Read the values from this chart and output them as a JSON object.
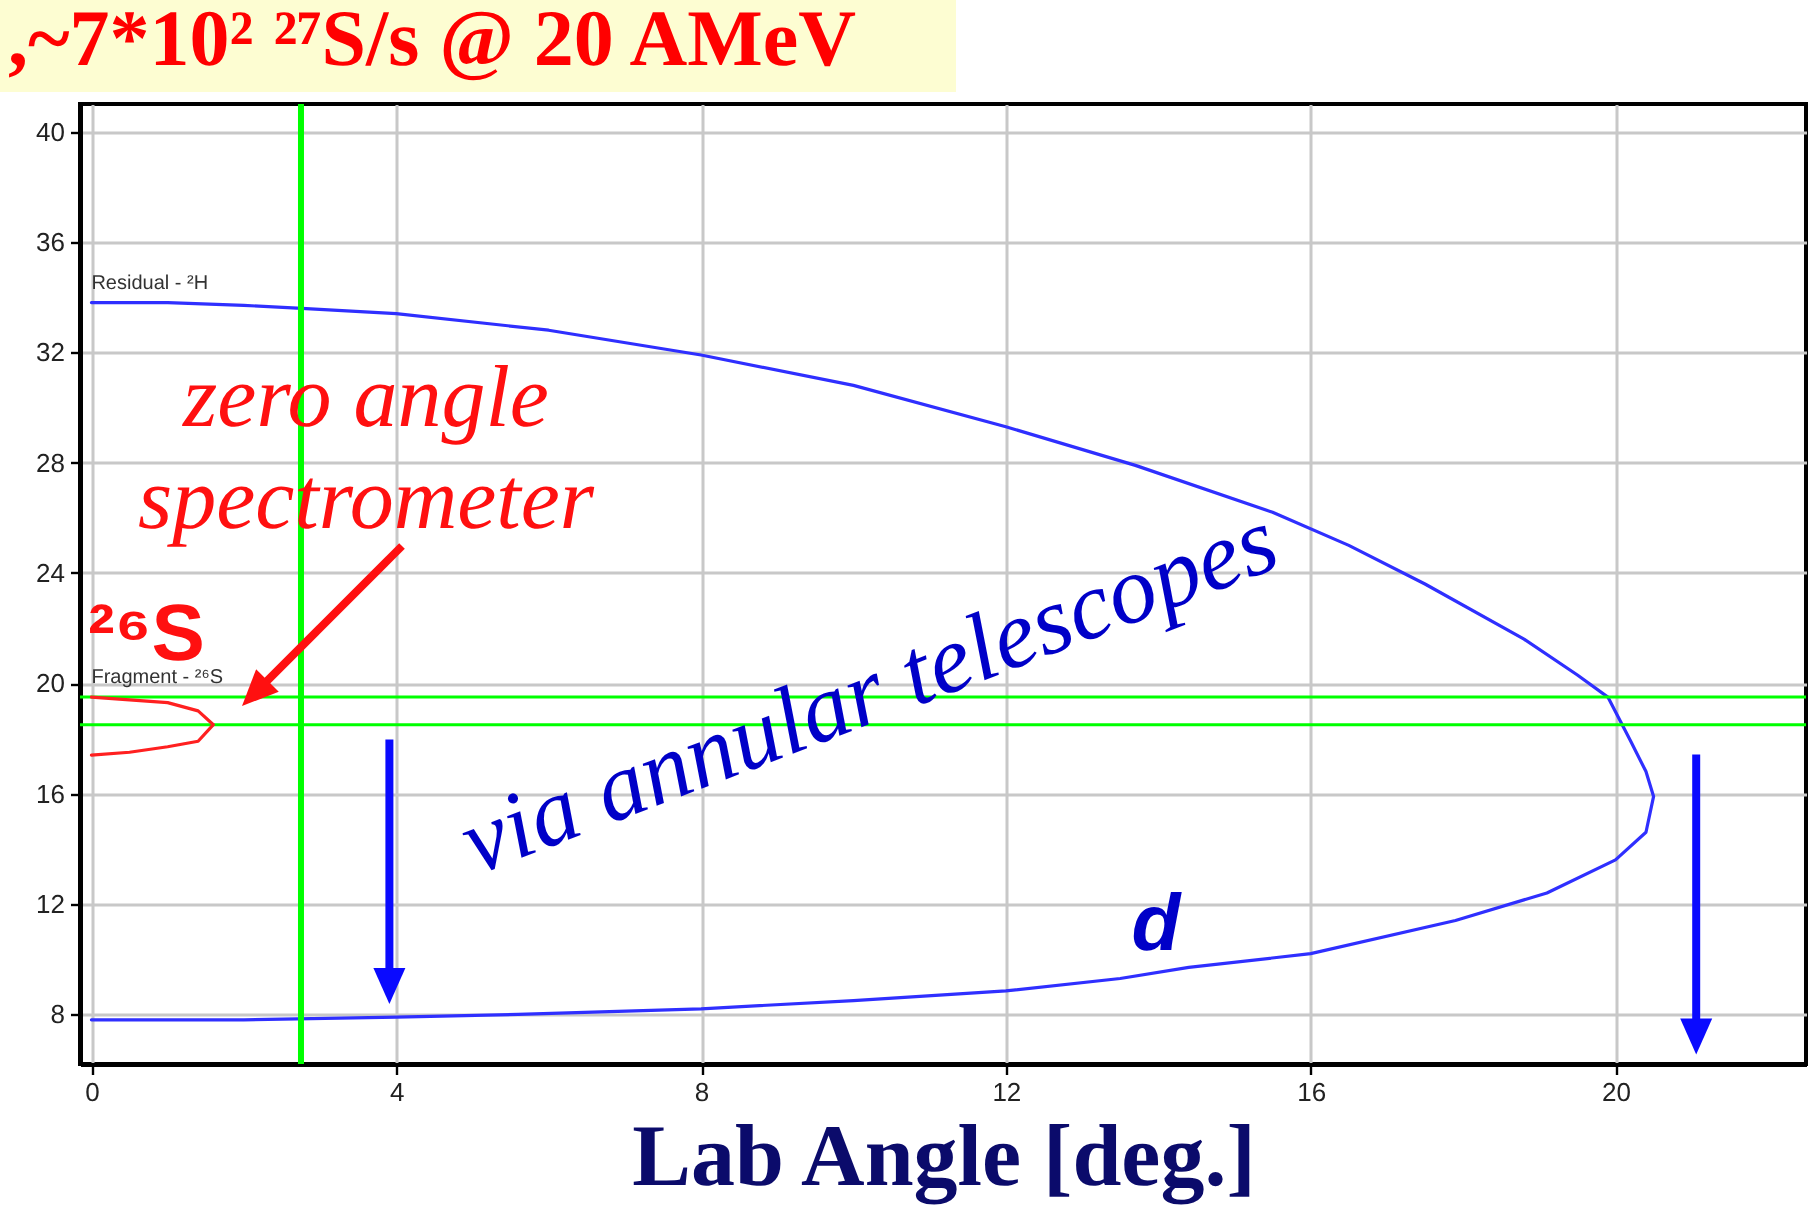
{
  "chart_data": {
    "type": "line",
    "title": ",~7*10² ²⁷S/s @ 20 AMeV",
    "xlabel": "Lab Angle [deg.]",
    "xlim": [
      -0.15,
      22.5
    ],
    "ylim": [
      6.2,
      41
    ],
    "xticks": [
      0,
      4,
      8,
      12,
      16,
      20
    ],
    "yticks": [
      8,
      12,
      16,
      20,
      24,
      28,
      32,
      36,
      40
    ],
    "grid": true,
    "series": [
      {
        "name": "Residual - ²H",
        "color": "#2f2fff",
        "x": [
          0,
          1,
          2,
          2.7,
          4,
          6,
          8,
          10,
          12,
          13.7,
          15.5,
          16.5,
          17.5,
          18.8,
          19.5,
          19.9,
          20.2,
          20.4,
          20.5,
          20.4,
          20,
          19.1,
          17.9,
          16,
          14.4,
          13.5,
          12,
          10,
          8,
          5.6,
          4,
          2,
          0
        ],
        "values": [
          33.8,
          33.8,
          33.7,
          33.6,
          33.4,
          32.8,
          31.9,
          30.8,
          29.3,
          27.9,
          26.2,
          25,
          23.6,
          21.6,
          20.3,
          19.5,
          17.9,
          16.8,
          15.9,
          14.6,
          13.6,
          12.4,
          11.4,
          10.2,
          9.7,
          9.3,
          8.85,
          8.5,
          8.2,
          8,
          7.9,
          7.8,
          7.8
        ]
      },
      {
        "name": "Fragment - ²⁶S",
        "color": "#ff2020",
        "x": [
          0,
          0.5,
          1,
          1.4,
          1.6,
          1.4,
          1,
          0.5,
          0
        ],
        "values": [
          19.5,
          19.4,
          19.3,
          19,
          18.5,
          17.9,
          17.7,
          17.5,
          17.4
        ]
      }
    ],
    "ref_lines": [
      {
        "axis": "x",
        "value": 2.75,
        "color": "#00ff00"
      },
      {
        "axis": "y",
        "value": 19.5,
        "color": "#00ff00"
      },
      {
        "axis": "y",
        "value": 18.5,
        "color": "#00ff00"
      }
    ],
    "annotations": [
      "zero angle\nspectrometer",
      "²⁶S",
      "via annular telescopes",
      "d"
    ]
  }
}
